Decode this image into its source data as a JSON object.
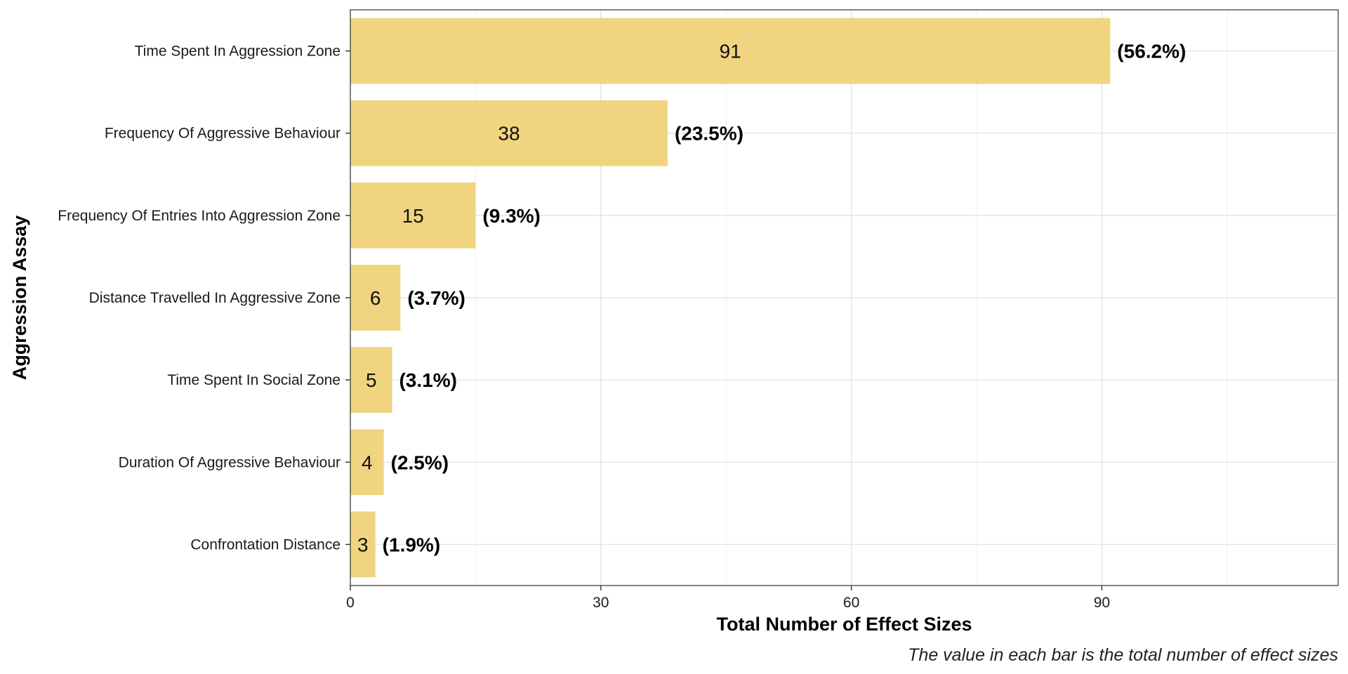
{
  "chart_data": {
    "type": "bar",
    "orientation": "horizontal",
    "categories": [
      "Time Spent In Aggression Zone",
      "Frequency Of Aggressive Behaviour",
      "Frequency Of Entries Into Aggression Zone",
      "Distance Travelled In Aggressive Zone",
      "Time Spent In Social Zone",
      "Duration Of Aggressive Behaviour",
      "Confrontation Distance"
    ],
    "values": [
      91,
      38,
      15,
      6,
      5,
      4,
      3
    ],
    "value_labels": [
      "91",
      "38",
      "15",
      "6",
      "5",
      "4",
      "3"
    ],
    "percent_labels": [
      "(56.2%)",
      "(23.5%)",
      "(9.3%)",
      "(3.7%)",
      "(3.1%)",
      "(2.5%)",
      "(1.9%)"
    ],
    "xlabel": "Total Number of Effect Sizes",
    "ylabel": "Aggression Assay",
    "caption": "The value in each bar is the total number of effect sizes",
    "xlim": [
      0,
      118.3
    ],
    "xticks": [
      0,
      30,
      60,
      90
    ],
    "xtick_labels": [
      "0",
      "30",
      "60",
      "90"
    ],
    "grid": true,
    "legend": "none",
    "colors": {
      "bar": "#f0d47f",
      "grid_major": "#e3e3e3",
      "grid_minor": "#f2f2f2",
      "panel_border": "#333333"
    }
  }
}
